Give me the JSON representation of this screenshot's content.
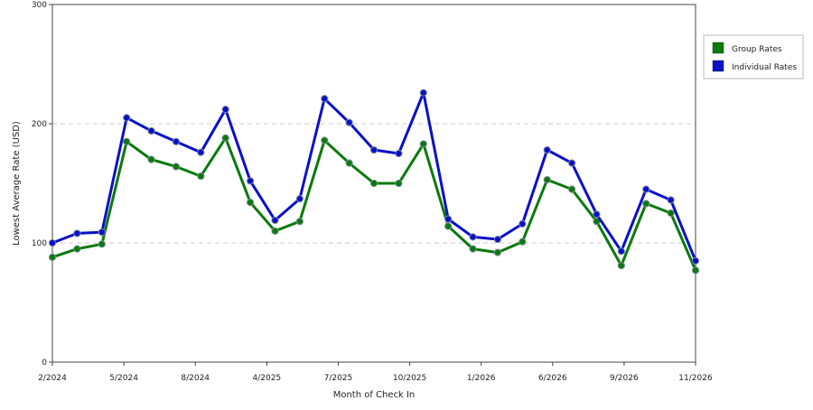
{
  "chart_data": {
    "type": "line",
    "xlabel": "Month of Check In",
    "ylabel": "Lowest Average Rate (USD)",
    "ylim": [
      0,
      300
    ],
    "yticks": [
      "0",
      "100",
      "200",
      "300"
    ],
    "grid": true,
    "legend_position": "top-right",
    "x_tick_labels": [
      "2/2024",
      "5/2024",
      "8/2024",
      "4/2025",
      "7/2025",
      "10/2025",
      "1/2026",
      "6/2026",
      "9/2026",
      "11/2026"
    ],
    "series": [
      {
        "name": "Group Rates",
        "color": "#0a7a0a",
        "values": [
          88,
          95,
          99,
          185,
          170,
          164,
          156,
          188,
          134,
          110,
          118,
          186,
          167,
          150,
          150,
          183,
          114,
          95,
          92,
          101,
          153,
          145,
          118,
          81,
          133,
          125,
          77
        ]
      },
      {
        "name": "Individual Rates",
        "color": "#0a10c8",
        "values": [
          100,
          108,
          109,
          205,
          194,
          185,
          176,
          212,
          152,
          119,
          137,
          221,
          201,
          178,
          175,
          226,
          120,
          105,
          103,
          116,
          178,
          167,
          124,
          93,
          145,
          136,
          85
        ]
      }
    ]
  }
}
